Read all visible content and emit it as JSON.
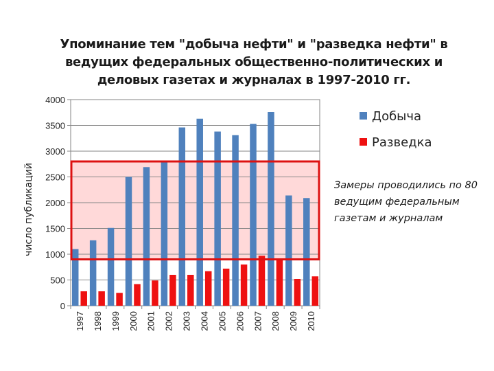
{
  "chart_data": {
    "type": "bar",
    "title_lines": [
      "Упоминание тем \"добыча нефти\" и \"разведка нефти\" в",
      "ведущих федеральных общественно-политических и",
      "деловых газетах и журналах в 1997-2010 гг."
    ],
    "ylabel": "число публикаций",
    "ylim": [
      0,
      4000
    ],
    "yticks": [
      0,
      500,
      1000,
      1500,
      2000,
      2500,
      3000,
      3500,
      4000
    ],
    "grid": true,
    "legend_position": "right",
    "categories": [
      "1997",
      "1998",
      "1999",
      "2000",
      "2001",
      "2002",
      "2003",
      "2004",
      "2005",
      "2006",
      "2007",
      "2008",
      "2009",
      "2010"
    ],
    "series": [
      {
        "name": "Добыча",
        "color": "#4f81bd",
        "values": [
          1100,
          1270,
          1510,
          2500,
          2690,
          2780,
          3460,
          3630,
          3380,
          3310,
          3530,
          3760,
          2140,
          2090
        ]
      },
      {
        "name": "Разведка",
        "color": "#ee1111",
        "values": [
          280,
          280,
          250,
          420,
          490,
          600,
          600,
          670,
          720,
          800,
          970,
          910,
          520,
          570
        ]
      }
    ],
    "highlight": {
      "range": [
        900,
        2800
      ],
      "fill": "#ffd9d9",
      "stroke": "#dd1111"
    },
    "annotation": "Замеры проводились по 80 ведущим федеральным газетам и журналам"
  }
}
